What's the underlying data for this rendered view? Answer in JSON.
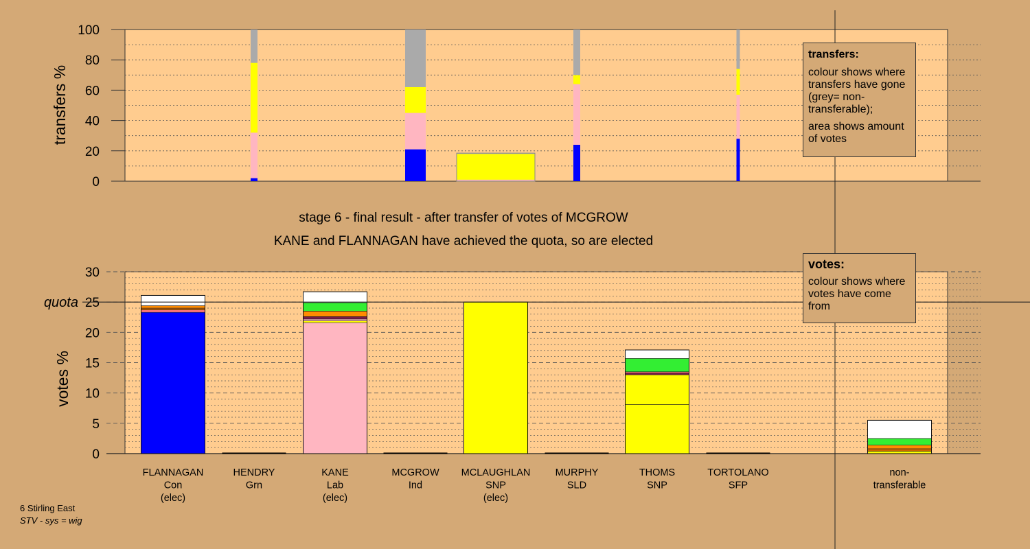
{
  "chart_data": [
    {
      "type": "bar",
      "stacked": true,
      "ylabel": "transfers %",
      "ylim": [
        0,
        100
      ],
      "yticks": [
        0,
        20,
        40,
        60,
        80,
        100
      ],
      "bars": [
        {
          "x_category": "HENDRY",
          "width": "narrow",
          "segments": [
            {
              "color": "#0000ff",
              "value": 2
            },
            {
              "color": "#ffb6c1",
              "value": 30
            },
            {
              "color": "#ffff00",
              "value": 46
            },
            {
              "color": "#aaaaaa",
              "value": 22
            }
          ]
        },
        {
          "x_category": "MCGROW",
          "width": "medium",
          "segments": [
            {
              "color": "#0000ff",
              "value": 21
            },
            {
              "color": "#ffb6c1",
              "value": 24
            },
            {
              "color": "#ffff00",
              "value": 17
            },
            {
              "color": "#aaaaaa",
              "value": 38
            }
          ]
        },
        {
          "x_category": "MCLAUGHLAN",
          "width": "wide",
          "segments": [
            {
              "color": "#ffb6c1",
              "value": 1
            },
            {
              "color": "#ffff00",
              "value": 17
            },
            {
              "color": "#aaaaaa",
              "value": 0.5
            }
          ]
        },
        {
          "x_category": "MURPHY",
          "width": "narrow",
          "segments": [
            {
              "color": "#0000ff",
              "value": 24
            },
            {
              "color": "#ffb6c1",
              "value": 40
            },
            {
              "color": "#ffff00",
              "value": 6
            },
            {
              "color": "#aaaaaa",
              "value": 30
            }
          ]
        },
        {
          "x_category": "TORTOLANO",
          "width": "thin",
          "segments": [
            {
              "color": "#0000ff",
              "value": 28
            },
            {
              "color": "#ffb6c1",
              "value": 29
            },
            {
              "color": "#ffff00",
              "value": 17
            },
            {
              "color": "#aaaaaa",
              "value": 26
            }
          ]
        }
      ]
    },
    {
      "type": "bar",
      "stacked": true,
      "ylabel": "votes %",
      "ylim": [
        0,
        30
      ],
      "yticks": [
        0,
        5,
        10,
        15,
        20,
        25,
        30
      ],
      "quota": 25,
      "quota_label": "quota",
      "categories": [
        {
          "name": "FLANNAGAN",
          "party": "Con",
          "status": "(elec)"
        },
        {
          "name": "HENDRY",
          "party": "Grn",
          "status": ""
        },
        {
          "name": "KANE",
          "party": "Lab",
          "status": "(elec)"
        },
        {
          "name": "MCGROW",
          "party": "Ind",
          "status": ""
        },
        {
          "name": "MCLAUGHLAN",
          "party": "SNP",
          "status": "(elec)"
        },
        {
          "name": "MURPHY",
          "party": "SLD",
          "status": ""
        },
        {
          "name": "THOMS",
          "party": "SNP",
          "status": ""
        },
        {
          "name": "TORTOLANO",
          "party": "SFP",
          "status": ""
        },
        {
          "name": "non-",
          "party": "transferable",
          "status": ""
        }
      ],
      "stacks": [
        [
          {
            "color": "#0000ff",
            "value": 23.3
          },
          {
            "color": "#ff7777",
            "value": 0.4
          },
          {
            "color": "#cc6600",
            "value": 0.3
          },
          {
            "color": "#ff8c00",
            "value": 0.4
          },
          {
            "color": "#ffffff",
            "value": 1.7
          }
        ],
        [],
        [
          {
            "color": "#ffb6c1",
            "value": 21.6
          },
          {
            "color": "#ffff00",
            "value": 0.3
          },
          {
            "color": "#ffb6c1",
            "value": 0.3
          },
          {
            "color": "#7a1a4a",
            "value": 0.4
          },
          {
            "color": "#ff8c00",
            "value": 0.9
          },
          {
            "color": "#33ee33",
            "value": 1.4
          },
          {
            "color": "#ffffff",
            "value": 1.8
          }
        ],
        [],
        [
          {
            "color": "#ffff00",
            "value": 25
          }
        ],
        [],
        [
          {
            "color": "#ffff00",
            "value": 8.1
          },
          {
            "color": "#ffff00",
            "value": 4.9
          },
          {
            "color": "#7a1a4a",
            "value": 0.3
          },
          {
            "color": "#ff7777",
            "value": 0.2
          },
          {
            "color": "#33ee33",
            "value": 2.2
          },
          {
            "color": "#ffffff",
            "value": 1.4
          }
        ],
        [],
        [
          {
            "color": "#ffff00",
            "value": 0.4
          },
          {
            "color": "#cc6600",
            "value": 0.4
          },
          {
            "color": "#ff8c00",
            "value": 0.6
          },
          {
            "color": "#33ee33",
            "value": 1.1
          },
          {
            "color": "#ffffff",
            "value": 3
          }
        ]
      ]
    }
  ],
  "title": {
    "line1": "stage 6 - final result - after transfer of votes of MCGROW",
    "line2": "KANE and FLANNAGAN have achieved the quota, so are elected"
  },
  "legend_transfers": {
    "title": "transfers:",
    "text1": "colour shows where transfers have gone (grey= non-transferable);",
    "text2": "area shows amount of votes"
  },
  "legend_votes": {
    "title": "votes:",
    "text1": "colour shows where votes have come from"
  },
  "footer": {
    "line1": "6 Stirling East",
    "line2": "STV - sys = wig"
  }
}
